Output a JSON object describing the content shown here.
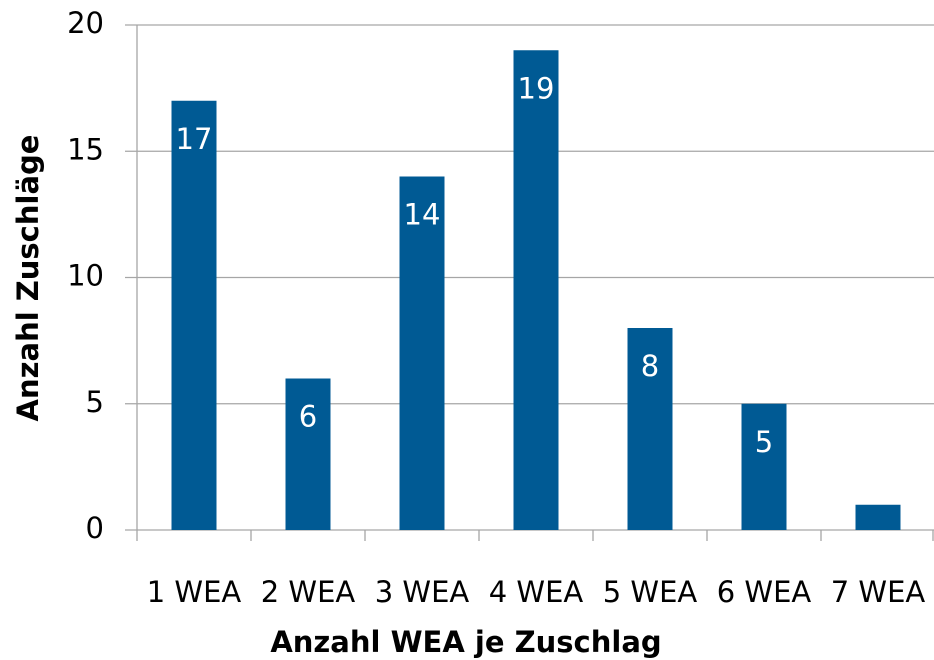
{
  "chart_data": {
    "type": "bar",
    "xlabel": "Anzahl WEA je Zuschlag",
    "ylabel": "Anzahl Zuschläge",
    "categories": [
      "1 WEA",
      "2 WEA",
      "3 WEA",
      "4 WEA",
      "5 WEA",
      "6 WEA",
      "7 WEA"
    ],
    "values": [
      17,
      6,
      14,
      19,
      8,
      5,
      1
    ],
    "color": "#005a94",
    "ylim": [
      0,
      20
    ],
    "yticks": [
      0,
      5,
      10,
      15,
      20
    ],
    "grid": true,
    "data_labels": true
  }
}
